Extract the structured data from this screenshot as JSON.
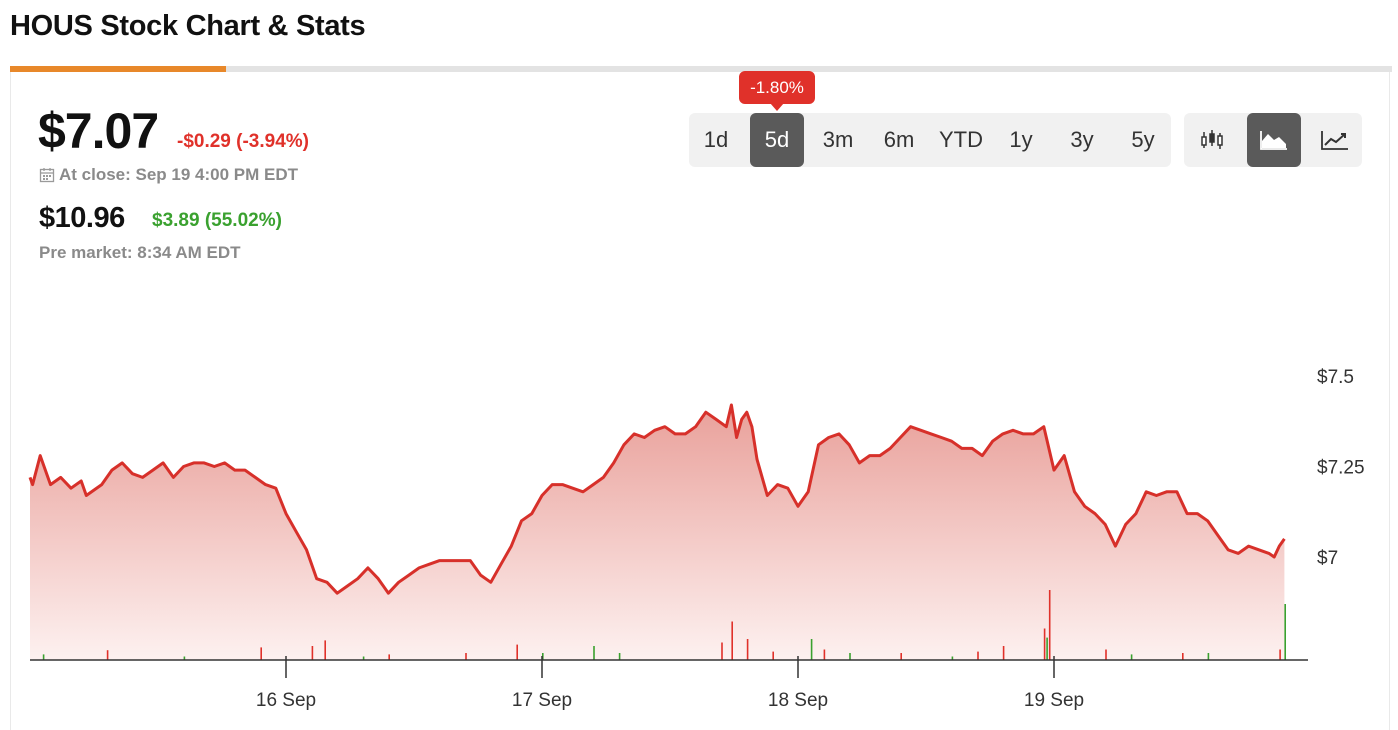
{
  "page": {
    "title": "HOUS Stock Chart & Stats"
  },
  "quote": {
    "price": "$7.07",
    "change": "-$0.29 (-3.94%)",
    "close_info": "At close: Sep 19 4:00 PM EDT",
    "pre_price": "$10.96",
    "pre_change": "$3.89 (55.02%)",
    "pre_info": "Pre market: 8:34 AM EDT"
  },
  "range": {
    "options": [
      "1d",
      "5d",
      "3m",
      "6m",
      "YTD",
      "1y",
      "3y",
      "5y"
    ],
    "selected": "5d",
    "badge": "-1.80%"
  },
  "chart_types": {
    "selected": "area",
    "icons": [
      "candlestick-icon",
      "area-chart-icon",
      "line-chart-icon"
    ]
  },
  "colors": {
    "accent": "#e8882a",
    "negative": "#e0312a",
    "positive": "#3aa12f",
    "line": "#d7302a",
    "area_top": "#e9a09a",
    "area_bottom": "#fdf1f0"
  },
  "chart_data": {
    "type": "area",
    "x_ticks": [
      "16 Sep",
      "17 Sep",
      "18 Sep",
      "19 Sep"
    ],
    "y_ticks": [
      {
        "value": 7.5,
        "label": "$7.5"
      },
      {
        "value": 7.25,
        "label": "$7.25"
      },
      {
        "value": 7.0,
        "label": "$7"
      }
    ],
    "ylim": [
      6.85,
      7.7
    ],
    "series": [
      {
        "values": [
          [
            0.0,
            7.22
          ],
          [
            0.01,
            7.2
          ],
          [
            0.04,
            7.28
          ],
          [
            0.08,
            7.2
          ],
          [
            0.12,
            7.22
          ],
          [
            0.16,
            7.19
          ],
          [
            0.2,
            7.21
          ],
          [
            0.22,
            7.17
          ],
          [
            0.28,
            7.2
          ],
          [
            0.32,
            7.24
          ],
          [
            0.36,
            7.26
          ],
          [
            0.4,
            7.23
          ],
          [
            0.44,
            7.22
          ],
          [
            0.48,
            7.24
          ],
          [
            0.52,
            7.26
          ],
          [
            0.56,
            7.22
          ],
          [
            0.6,
            7.25
          ],
          [
            0.64,
            7.26
          ],
          [
            0.68,
            7.26
          ],
          [
            0.72,
            7.25
          ],
          [
            0.76,
            7.26
          ],
          [
            0.8,
            7.24
          ],
          [
            0.84,
            7.24
          ],
          [
            0.88,
            7.22
          ],
          [
            0.92,
            7.2
          ],
          [
            0.96,
            7.19
          ],
          [
            1.0,
            7.12
          ],
          [
            1.04,
            7.07
          ],
          [
            1.08,
            7.02
          ],
          [
            1.12,
            6.94
          ],
          [
            1.16,
            6.93
          ],
          [
            1.2,
            6.9
          ],
          [
            1.24,
            6.92
          ],
          [
            1.28,
            6.94
          ],
          [
            1.32,
            6.97
          ],
          [
            1.36,
            6.94
          ],
          [
            1.4,
            6.9
          ],
          [
            1.44,
            6.93
          ],
          [
            1.48,
            6.95
          ],
          [
            1.52,
            6.97
          ],
          [
            1.56,
            6.98
          ],
          [
            1.6,
            6.99
          ],
          [
            1.64,
            6.99
          ],
          [
            1.68,
            6.99
          ],
          [
            1.72,
            6.99
          ],
          [
            1.76,
            6.95
          ],
          [
            1.8,
            6.93
          ],
          [
            1.84,
            6.98
          ],
          [
            1.88,
            7.03
          ],
          [
            1.92,
            7.1
          ],
          [
            1.96,
            7.12
          ],
          [
            2.0,
            7.17
          ],
          [
            2.04,
            7.2
          ],
          [
            2.08,
            7.2
          ],
          [
            2.12,
            7.19
          ],
          [
            2.16,
            7.18
          ],
          [
            2.2,
            7.2
          ],
          [
            2.24,
            7.22
          ],
          [
            2.28,
            7.26
          ],
          [
            2.32,
            7.31
          ],
          [
            2.36,
            7.34
          ],
          [
            2.4,
            7.33
          ],
          [
            2.44,
            7.35
          ],
          [
            2.48,
            7.36
          ],
          [
            2.52,
            7.34
          ],
          [
            2.56,
            7.34
          ],
          [
            2.6,
            7.36
          ],
          [
            2.64,
            7.4
          ],
          [
            2.68,
            7.38
          ],
          [
            2.72,
            7.36
          ],
          [
            2.74,
            7.42
          ],
          [
            2.76,
            7.33
          ],
          [
            2.78,
            7.38
          ],
          [
            2.8,
            7.4
          ],
          [
            2.82,
            7.36
          ],
          [
            2.84,
            7.27
          ],
          [
            2.88,
            7.17
          ],
          [
            2.92,
            7.2
          ],
          [
            2.96,
            7.19
          ],
          [
            3.0,
            7.14
          ],
          [
            3.04,
            7.18
          ],
          [
            3.08,
            7.31
          ],
          [
            3.12,
            7.33
          ],
          [
            3.16,
            7.34
          ],
          [
            3.2,
            7.31
          ],
          [
            3.24,
            7.26
          ],
          [
            3.28,
            7.28
          ],
          [
            3.32,
            7.28
          ],
          [
            3.36,
            7.3
          ],
          [
            3.4,
            7.33
          ],
          [
            3.44,
            7.36
          ],
          [
            3.48,
            7.35
          ],
          [
            3.52,
            7.34
          ],
          [
            3.56,
            7.33
          ],
          [
            3.6,
            7.32
          ],
          [
            3.64,
            7.3
          ],
          [
            3.68,
            7.3
          ],
          [
            3.72,
            7.28
          ],
          [
            3.76,
            7.32
          ],
          [
            3.8,
            7.34
          ],
          [
            3.84,
            7.35
          ],
          [
            3.88,
            7.34
          ],
          [
            3.92,
            7.34
          ],
          [
            3.96,
            7.36
          ],
          [
            4.0,
            7.24
          ],
          [
            4.04,
            7.28
          ],
          [
            4.08,
            7.18
          ],
          [
            4.12,
            7.14
          ],
          [
            4.16,
            7.12
          ],
          [
            4.2,
            7.09
          ],
          [
            4.24,
            7.03
          ],
          [
            4.28,
            7.09
          ],
          [
            4.32,
            7.12
          ],
          [
            4.36,
            7.18
          ],
          [
            4.4,
            7.17
          ],
          [
            4.44,
            7.18
          ],
          [
            4.48,
            7.18
          ],
          [
            4.52,
            7.12
          ],
          [
            4.56,
            7.12
          ],
          [
            4.6,
            7.1
          ],
          [
            4.64,
            7.06
          ],
          [
            4.68,
            7.02
          ],
          [
            4.72,
            7.01
          ],
          [
            4.76,
            7.03
          ],
          [
            4.8,
            7.02
          ],
          [
            4.84,
            7.01
          ],
          [
            4.86,
            7.0
          ],
          [
            4.88,
            7.03
          ],
          [
            4.9,
            7.05
          ]
        ]
      }
    ],
    "volume": {
      "red": [
        [
          0.3,
          0.14
        ],
        [
          0.9,
          0.18
        ],
        [
          1.1,
          0.2
        ],
        [
          1.15,
          0.28
        ],
        [
          1.4,
          0.08
        ],
        [
          1.7,
          0.1
        ],
        [
          1.9,
          0.22
        ],
        [
          2.7,
          0.25
        ],
        [
          2.74,
          0.55
        ],
        [
          2.8,
          0.3
        ],
        [
          2.9,
          0.12
        ],
        [
          3.1,
          0.15
        ],
        [
          3.4,
          0.1
        ],
        [
          3.7,
          0.12
        ],
        [
          3.8,
          0.2
        ],
        [
          3.96,
          0.45
        ],
        [
          3.98,
          1.0
        ],
        [
          4.2,
          0.15
        ],
        [
          4.5,
          0.1
        ],
        [
          4.88,
          0.15
        ]
      ],
      "green": [
        [
          0.05,
          0.08
        ],
        [
          0.6,
          0.05
        ],
        [
          1.3,
          0.05
        ],
        [
          2.0,
          0.1
        ],
        [
          2.2,
          0.2
        ],
        [
          2.3,
          0.1
        ],
        [
          3.05,
          0.3
        ],
        [
          3.2,
          0.1
        ],
        [
          3.6,
          0.05
        ],
        [
          3.97,
          0.32
        ],
        [
          4.3,
          0.08
        ],
        [
          4.6,
          0.1
        ],
        [
          4.9,
          0.8
        ]
      ]
    }
  }
}
